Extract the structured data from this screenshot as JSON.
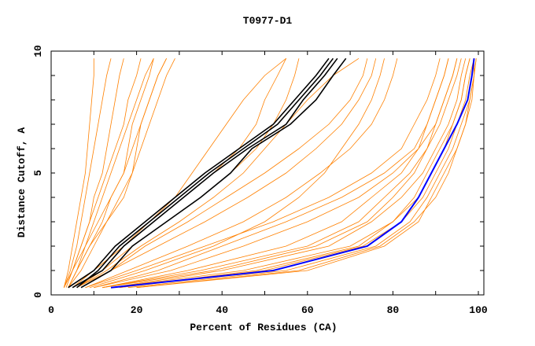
{
  "chart_data": {
    "type": "line",
    "title": "T0977-D1",
    "xlabel": "Percent of Residues (CA)",
    "ylabel": "Distance Cutoff, A",
    "xlim": [
      0,
      100
    ],
    "ylim": [
      0,
      10
    ],
    "x_ticks": [
      "0",
      "20",
      "40",
      "60",
      "80",
      "100"
    ],
    "y_ticks": [
      "0",
      "5",
      "10"
    ],
    "grid": false,
    "legend": "none",
    "y": [
      0.3,
      1,
      2,
      3,
      4,
      5,
      6,
      7,
      8,
      9,
      9.7
    ],
    "colors": {
      "models": "#ff8000",
      "highlight": "#000000",
      "best": "#0000ff"
    },
    "series_orange": [
      [
        3,
        4,
        5,
        6,
        7,
        8,
        8.5,
        9,
        9.5,
        10,
        10
      ],
      [
        3,
        4.5,
        6,
        7,
        8,
        9,
        10,
        11,
        12,
        13,
        14
      ],
      [
        3,
        5,
        7,
        9,
        10,
        12,
        13,
        14,
        15,
        16,
        17
      ],
      [
        3.5,
        5,
        7,
        9,
        11,
        13,
        15,
        17,
        18,
        20,
        21
      ],
      [
        4,
        6,
        8,
        10,
        12,
        14,
        16,
        18,
        20,
        22,
        24
      ],
      [
        4,
        6,
        9,
        12,
        14,
        17,
        19,
        21,
        23,
        25,
        27
      ],
      [
        4,
        7,
        10,
        13,
        16,
        19,
        21,
        23,
        25,
        27,
        29
      ],
      [
        4,
        6,
        9,
        13,
        17,
        19,
        20,
        21,
        23,
        25,
        27
      ],
      [
        3,
        5,
        8,
        11,
        14,
        17,
        18,
        19,
        21,
        23,
        24
      ],
      [
        5,
        10,
        17,
        23,
        29,
        33,
        37,
        41,
        45,
        50,
        55
      ],
      [
        5,
        10,
        17,
        24,
        31,
        38,
        44,
        48,
        50,
        53,
        55
      ],
      [
        6,
        12,
        19,
        27,
        35,
        42,
        48,
        52,
        55,
        57,
        58
      ],
      [
        6,
        13,
        21,
        30,
        38,
        45,
        50,
        55,
        60,
        66,
        72
      ],
      [
        7,
        14,
        22,
        32,
        41,
        50,
        58,
        65,
        70,
        73,
        74
      ],
      [
        8,
        18,
        32,
        45,
        55,
        63,
        70,
        75,
        78,
        80,
        81
      ],
      [
        8,
        20,
        36,
        52,
        65,
        75,
        82,
        85,
        88,
        90,
        91
      ],
      [
        10,
        25,
        40,
        55,
        68,
        78,
        85,
        88,
        90,
        92,
        93
      ],
      [
        10,
        28,
        45,
        60,
        72,
        80,
        86,
        90,
        92,
        94,
        95
      ],
      [
        12,
        32,
        55,
        68,
        75,
        82,
        86,
        88,
        90,
        92,
        93
      ],
      [
        12,
        35,
        60,
        72,
        78,
        84,
        88,
        91,
        93,
        95,
        96
      ],
      [
        14,
        40,
        65,
        75,
        82,
        87,
        90,
        93,
        95,
        96,
        97
      ],
      [
        14,
        45,
        70,
        80,
        85,
        88,
        91,
        94,
        96,
        97,
        98
      ],
      [
        16,
        50,
        73,
        82,
        87,
        90,
        93,
        95,
        97,
        98,
        99
      ],
      [
        18,
        55,
        76,
        84,
        88,
        91,
        94,
        96,
        98,
        99,
        99.5
      ],
      [
        20,
        60,
        78,
        86,
        89,
        92,
        95,
        97,
        98.5,
        99,
        99.5
      ],
      [
        20,
        58,
        77,
        85,
        90,
        93,
        95,
        97,
        98,
        99,
        99
      ],
      [
        16,
        48,
        72,
        80,
        86,
        89,
        92,
        94,
        96,
        97,
        98
      ],
      [
        12,
        38,
        62,
        74,
        80,
        85,
        88,
        90,
        92,
        94,
        95
      ],
      [
        9,
        22,
        38,
        50,
        58,
        64,
        68,
        72,
        75,
        77,
        78
      ],
      [
        6,
        14,
        25,
        36,
        46,
        55,
        62,
        68,
        72,
        75,
        76
      ]
    ],
    "series_black": [
      [
        4,
        10,
        15,
        22,
        29,
        36,
        44,
        52,
        57,
        62,
        65
      ],
      [
        6,
        11,
        16,
        23,
        30,
        37,
        45,
        53,
        58,
        63,
        66
      ],
      [
        5,
        12,
        17,
        24,
        31,
        38,
        46,
        55,
        59,
        64,
        67
      ],
      [
        7,
        14,
        19,
        27,
        35,
        42,
        47,
        56,
        62,
        66,
        69
      ]
    ],
    "series_blue": [
      14,
      52,
      74,
      82,
      86,
      89,
      92,
      95,
      97.5,
      98.5,
      99
    ]
  }
}
